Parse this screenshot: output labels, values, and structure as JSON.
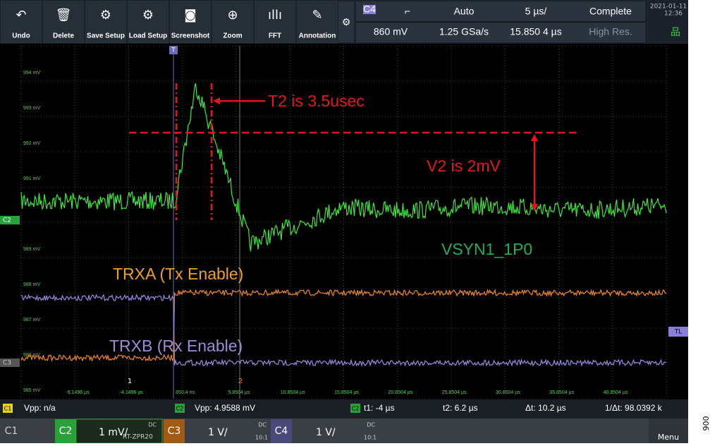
{
  "toolbar": {
    "buttons": [
      "Undo",
      "Delete",
      "Save Setup",
      "Load Setup",
      "Screenshot",
      "Zoom",
      "FFT",
      "Annotation"
    ]
  },
  "status": {
    "channel": "C4",
    "slope": "Auto",
    "timebase": "5 µs/",
    "state": "Complete",
    "level": "860 mV",
    "sample_rate": "1.25 GSa/s",
    "position": "15.850 4 µs",
    "mode": "High Res.",
    "date": "2021-01-11",
    "time": "12:36"
  },
  "grid": {
    "y_labels": [
      "994 mV",
      "993 mV",
      "992 mV",
      "991 mV",
      "989 mV",
      "988 mV",
      "987 mV",
      "986 mV",
      "985 mV"
    ],
    "x_labels": [
      "-9.1496 µs",
      "-4.1496 µs",
      "850.4 ns",
      "5.8504 µs",
      "10.8504 µs",
      "15.8504 µs",
      "20.8504 µs",
      "25.8504 µs",
      "30.8504 µs",
      "35.8504 µs",
      "40.8504 µs"
    ]
  },
  "markers": {
    "trigger": "T",
    "c2": "C2",
    "c3": "C3",
    "tl": "TL",
    "cursor1": "1",
    "cursor2": "2"
  },
  "annotations": {
    "t2": "T2 is 3.5usec",
    "v2": "V2 is 2mV",
    "vsyn": "VSYN1_1P0",
    "trxa": "TRXA (Tx Enable)",
    "trxb": "TRXB (Rx Enable)"
  },
  "measurements": {
    "c1_tag": "C1",
    "c1": "Vpp: n/a",
    "c2_tag": "C2",
    "c2": "Vpp: 4.9588 mV",
    "cursor_tag": "C2",
    "t1": "t1: -4 µs",
    "t2": "t2: 6.2 µs",
    "dt": "Δt: 10.2 µs",
    "inv_dt": "1/Δt: 98.0392 k"
  },
  "channels": {
    "c1": "C1",
    "c2": "C2",
    "c2_scale": "1 mV/",
    "c2_probe": "RT-ZPR20",
    "c2_coupling": "DC",
    "c3": "C3",
    "c3_scale": "1 V/",
    "c3_coupling": "DC",
    "c3_ratio": "10:1",
    "c4": "C4",
    "c4_scale": "1 V/",
    "c4_coupling": "DC",
    "c4_ratio": "10:1",
    "menu": "Menu"
  },
  "figure_id": "006"
}
